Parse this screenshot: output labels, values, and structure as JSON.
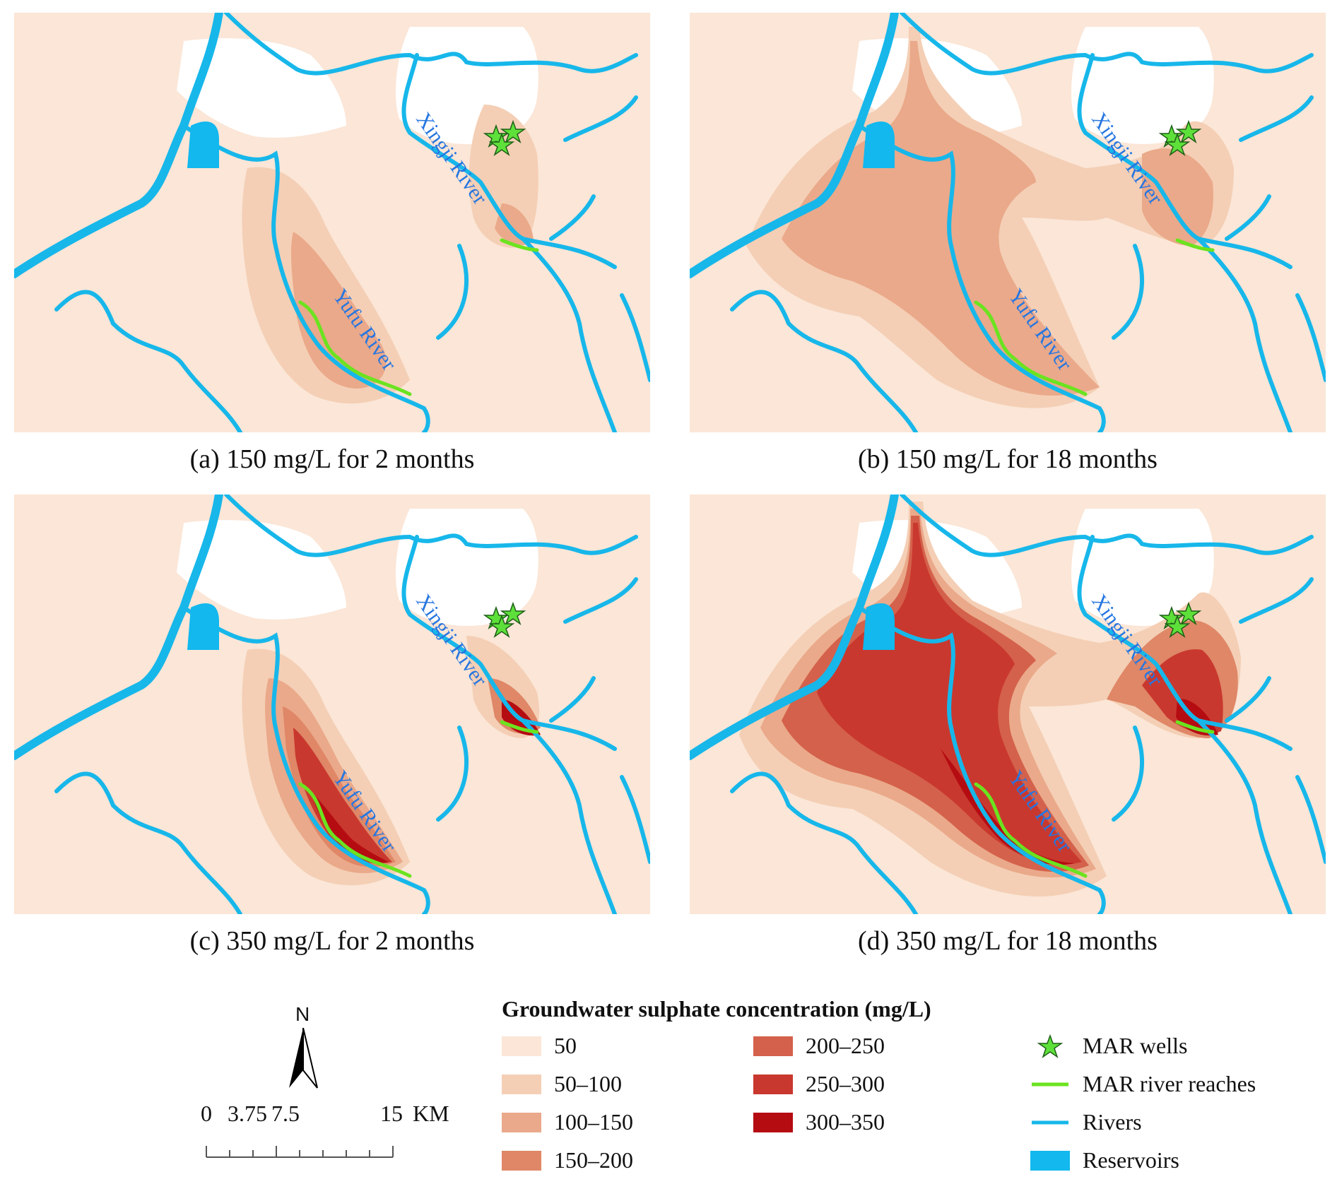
{
  "panels": [
    {
      "id": "a",
      "caption": "(a) 150 mg/L for 2 months"
    },
    {
      "id": "b",
      "caption": "(b) 150 mg/L for 18 months"
    },
    {
      "id": "c",
      "caption": "(c) 350 mg/L for 2 months"
    },
    {
      "id": "d",
      "caption": "(d) 350 mg/L for 18 months"
    }
  ],
  "rivers": {
    "xingji": "Xingji River",
    "yufu": "Yufu River"
  },
  "legend": {
    "title": "Groundwater sulphate concentration (mg/L)",
    "classes": [
      {
        "label": "50",
        "color": "#fbe6d7"
      },
      {
        "label": "50–100",
        "color": "#f4cfb5"
      },
      {
        "label": "100–150",
        "color": "#eaa98a"
      },
      {
        "label": "150–200",
        "color": "#df8767"
      },
      {
        "label": "200–250",
        "color": "#d4614b"
      },
      {
        "label": "250–300",
        "color": "#c9382e"
      },
      {
        "label": "300–350",
        "color": "#b50c12"
      }
    ],
    "symbols": [
      {
        "label": "MAR wells",
        "icon": "star-icon",
        "color": "#5ee03a"
      },
      {
        "label": "MAR river reaches",
        "icon": "green-line",
        "color": "#6be31f"
      },
      {
        "label": "Rivers",
        "icon": "blue-line",
        "color": "#17b7ea"
      },
      {
        "label": "Reservoirs",
        "icon": "blue-box",
        "color": "#12b8ee"
      }
    ]
  },
  "north_arrow": {
    "label": "N"
  },
  "scale_bar": {
    "ticks": [
      "0",
      "3.75",
      "7.5",
      "15"
    ],
    "unit": "KM"
  }
}
